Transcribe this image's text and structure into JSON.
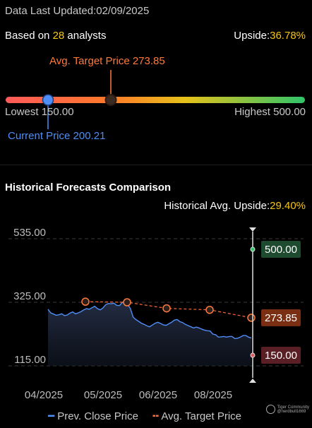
{
  "header": {
    "updated": "Data Last Updated:02/09/2025",
    "based_prefix": "Based on ",
    "analysts_count": "28",
    "based_suffix": " analysts",
    "upside_label": "Upside:",
    "upside_value": "36.78%"
  },
  "range": {
    "avg_target_label": "Avg. Target Price 273.85",
    "lowest_label": "Lowest 150.00",
    "highest_label": "Highest 500.00",
    "current_label": "Current Price 200.21",
    "low": 150.0,
    "high": 500.0,
    "current": 200.21,
    "avg_target": 273.85
  },
  "historical": {
    "title": "Historical Forecasts Comparison",
    "upside_label": "Historical Avg. Upside:",
    "upside_value": "29.40%"
  },
  "legend": {
    "close": "Prev. Close Price",
    "target": "Avg. Target Price"
  },
  "watermark": {
    "line1": "Tiger Community",
    "line2": "@nerdbull1669"
  },
  "colors": {
    "close_line": "#4f8ef7",
    "target_line": "#ff6a3a",
    "upside": "#f5c518",
    "high_badge": "#1e4a30",
    "target_badge": "#7a2e12",
    "low_badge": "#5a1e25"
  },
  "chart_data": {
    "type": "line",
    "title": "",
    "xlabel": "",
    "ylabel": "",
    "x_ticks": [
      "04/2025",
      "05/2025",
      "06/2025",
      "08/2025"
    ],
    "y_ticks": [
      535.0,
      325.0,
      115.0
    ],
    "ylim": [
      115,
      535
    ],
    "grid": true,
    "legend_placement": "bottom",
    "series": [
      {
        "name": "Prev. Close Price",
        "values": [
          302,
          290,
          286,
          282,
          284,
          287,
          281,
          283,
          289,
          293,
          287,
          290,
          294,
          300,
          304,
          302,
          307,
          312,
          304,
          300,
          306,
          317,
          321,
          320,
          322,
          315,
          314,
          324,
          330,
          318,
          304,
          276,
          268,
          262,
          256,
          252,
          247,
          244,
          250,
          256,
          259,
          255,
          250,
          249,
          254,
          259,
          266,
          268,
          261,
          258,
          252,
          248,
          244,
          240,
          243,
          240,
          236,
          233,
          231,
          230,
          220,
          218,
          210,
          211,
          212,
          210,
          212,
          212,
          205,
          206,
          210,
          215,
          215,
          210,
          207
        ]
      },
      {
        "name": "Avg. Target Price",
        "values": [
          327,
          325,
          305,
          300,
          273.85
        ]
      }
    ],
    "end_labels": {
      "high": "500.00",
      "target": "273.85",
      "low": "150.00"
    }
  }
}
